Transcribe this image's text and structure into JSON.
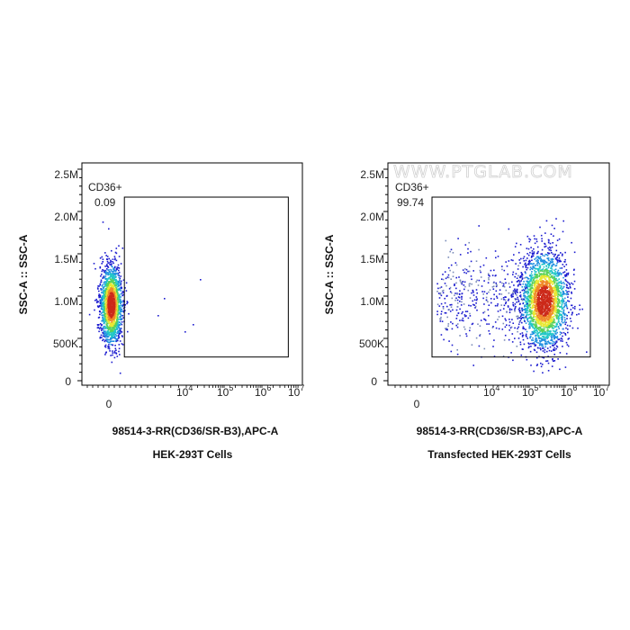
{
  "watermark": "WWW.PTGLAB.COM",
  "chart_data": [
    {
      "type": "scatter",
      "title": "HEK-293T Cells",
      "xlabel": "98514-3-RR(CD36/SR-B3),APC-A",
      "ylabel": "SSC-A :: SSC-A",
      "xscale": "biexponential",
      "x_ticks": [
        "0",
        "10^4",
        "10^5",
        "10^6",
        "10^7"
      ],
      "y_ticks": [
        "0",
        "500K",
        "1.0M",
        "1.5M",
        "2.0M",
        "2.5M"
      ],
      "ylim": [
        0,
        2700000
      ],
      "gate": {
        "name": "CD36+",
        "percent": "0.09",
        "x_range": [
          2000,
          5000000
        ],
        "y_range": [
          280000,
          2170000
        ]
      },
      "population": {
        "x_center": 0,
        "y_center": 900000
      },
      "colormap": [
        "#1b1bcf",
        "#1f8fe0",
        "#22c7c7",
        "#59d15a",
        "#e8e833",
        "#f08a2a",
        "#cc2a1a"
      ]
    },
    {
      "type": "scatter",
      "title": "Transfected HEK-293T Cells",
      "xlabel": "98514-3-RR(CD36/SR-B3),APC-A",
      "ylabel": "SSC-A :: SSC-A",
      "xscale": "biexponential",
      "x_ticks": [
        "0",
        "10^4",
        "10^5",
        "10^6",
        "10^7"
      ],
      "y_ticks": [
        "0",
        "500K",
        "1.0M",
        "1.5M",
        "2.0M",
        "2.5M"
      ],
      "ylim": [
        0,
        2700000
      ],
      "gate": {
        "name": "CD36+",
        "percent": "99.74",
        "x_range": [
          2000,
          5000000
        ],
        "y_range": [
          280000,
          2170000
        ]
      },
      "population": {
        "x_center": 250000,
        "y_center": 950000
      },
      "colormap": [
        "#1b1bcf",
        "#1f8fe0",
        "#22c7c7",
        "#59d15a",
        "#e8e833",
        "#f08a2a",
        "#cc2a1a"
      ]
    }
  ]
}
